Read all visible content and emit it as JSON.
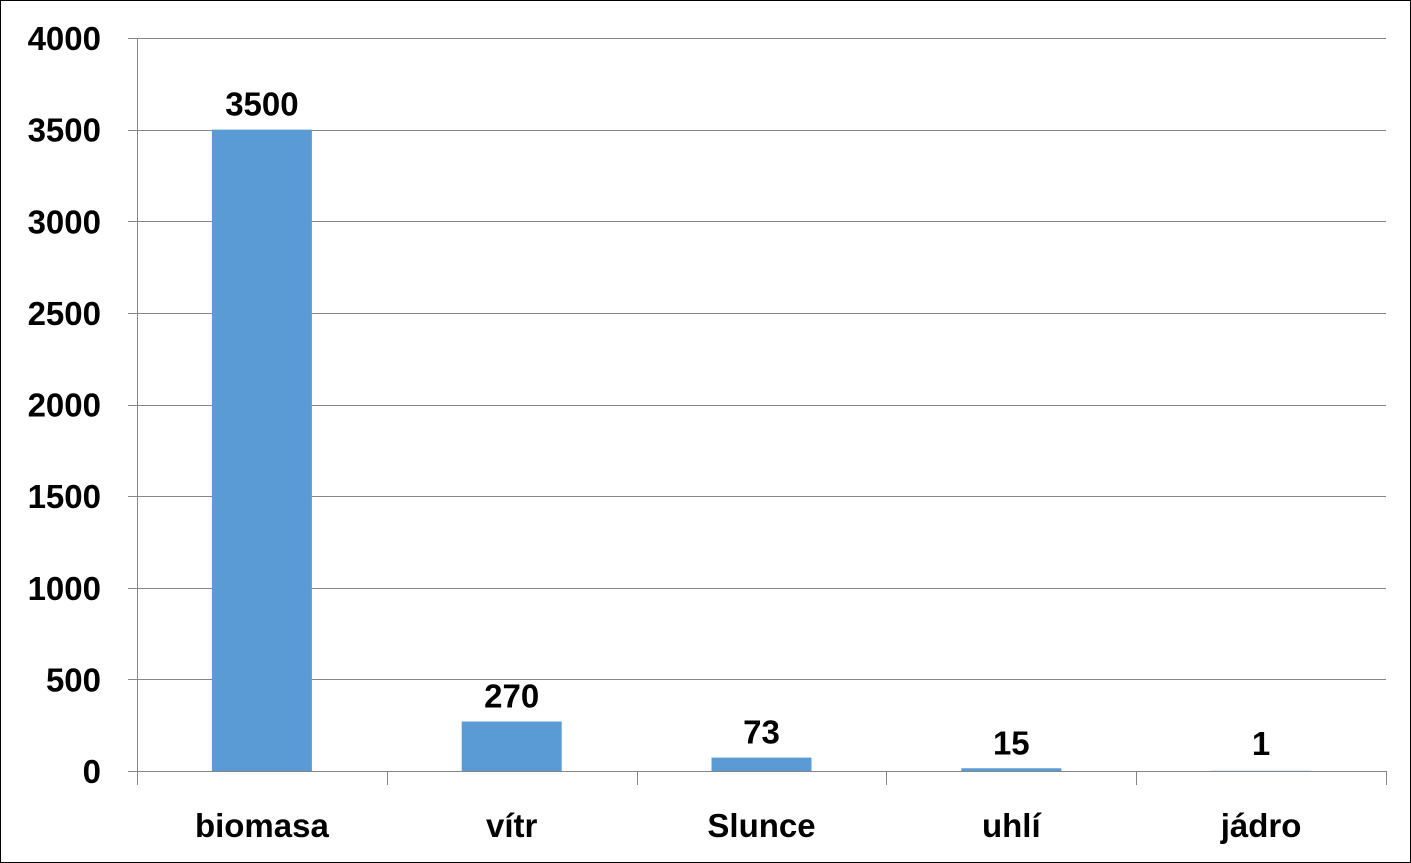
{
  "chart_data": {
    "type": "bar",
    "categories": [
      "biomasa",
      "vítr",
      "Slunce",
      "uhlí",
      "jádro"
    ],
    "values": [
      3500,
      270,
      73,
      15,
      1
    ],
    "data_labels": [
      "3500",
      "270",
      "73",
      "15",
      "1"
    ],
    "y_ticks": [
      "0",
      "500",
      "1000",
      "1500",
      "2000",
      "2500",
      "3000",
      "3500",
      "4000"
    ],
    "ylim": [
      0,
      4000
    ],
    "grid": true,
    "legend": "none",
    "colors": {
      "bar": "#5b9bd5",
      "grid": "#868686",
      "axis": "#868686"
    }
  }
}
